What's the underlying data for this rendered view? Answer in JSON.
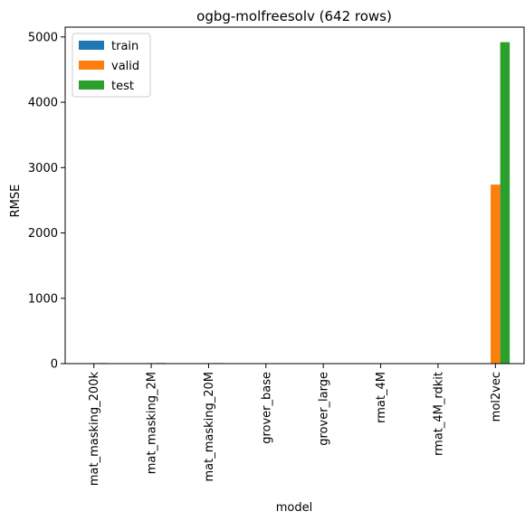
{
  "chart_data": {
    "type": "bar",
    "title": "ogbg-molfreesolv (642 rows)",
    "xlabel": "model",
    "ylabel": "RMSE",
    "categories": [
      "mat_masking_200k",
      "mat_masking_2M",
      "mat_masking_20M",
      "grover_base",
      "grover_large",
      "rmat_4M",
      "rmat_4M_rdkit",
      "mol2vec"
    ],
    "series": [
      {
        "name": "train",
        "color": "#1f77b4",
        "values": [
          1.5,
          1.8,
          1.6,
          1.2,
          0.8,
          0.6,
          0.5,
          0
        ]
      },
      {
        "name": "valid",
        "color": "#ff7f0e",
        "values": [
          8,
          9,
          8,
          6,
          3,
          2,
          2,
          2740
        ]
      },
      {
        "name": "test",
        "color": "#2ca02c",
        "values": [
          9,
          10,
          9,
          7,
          3,
          2,
          2,
          4920
        ]
      }
    ],
    "ylim": [
      0,
      5150
    ],
    "yticks": [
      0,
      1000,
      2000,
      3000,
      4000,
      5000
    ],
    "grid": false,
    "legend_position": "top-left"
  }
}
